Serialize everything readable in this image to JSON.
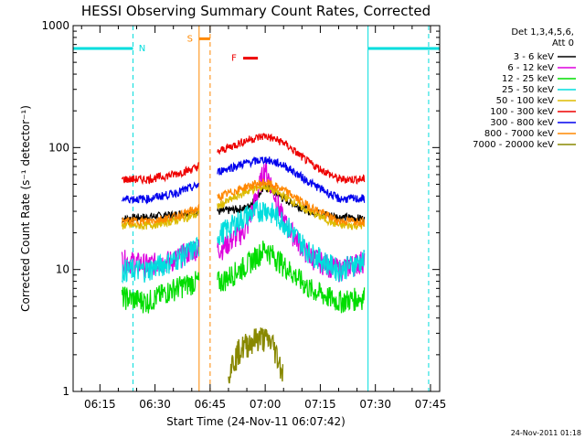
{
  "chart_data": {
    "type": "line",
    "title": "HESSI Observing Summary Count Rates, Corrected",
    "xlabel": "Start Time (24-Nov-11 06:07:42)",
    "ylabel": "Corrected Count Rate (s⁻¹ detector⁻¹)",
    "y_scale": "log",
    "ylim": [
      1,
      1000
    ],
    "xlim": [
      "06:07:42",
      "07:47:30"
    ],
    "x_tick_labels": [
      "06:15",
      "06:30",
      "06:45",
      "07:00",
      "07:15",
      "07:30",
      "07:45"
    ],
    "y_tick_labels": [
      "1",
      "10",
      "100",
      "1000"
    ],
    "legend_placement": "right",
    "legend_header": [
      "Det 1,3,4,5,6,",
      "Att 0"
    ],
    "data_gap": [
      "06:42",
      "06:47"
    ],
    "series": [
      {
        "name": "3 - 6 keV",
        "color": "#000000",
        "x": [
          "06:21",
          "06:28",
          "06:35",
          "06:41",
          "06:48",
          "06:55",
          "07:00",
          "07:05",
          "07:12",
          "07:20",
          "07:27"
        ],
        "y": [
          26,
          27,
          28,
          30,
          30,
          32,
          48,
          38,
          30,
          27,
          26
        ]
      },
      {
        "name": "6 - 12 keV",
        "color": "#dd00dd",
        "x": [
          "06:21",
          "06:28",
          "06:35",
          "06:41",
          "06:48",
          "06:55",
          "07:00",
          "07:05",
          "07:12",
          "07:20",
          "07:27"
        ],
        "y": [
          12,
          11,
          12,
          15,
          15,
          22,
          70,
          25,
          13,
          10,
          12
        ]
      },
      {
        "name": "12 - 25 keV",
        "color": "#00dd00",
        "x": [
          "06:21",
          "06:28",
          "06:35",
          "06:41",
          "06:48",
          "06:55",
          "07:00",
          "07:05",
          "07:12",
          "07:20",
          "07:27"
        ],
        "y": [
          6,
          5.5,
          7,
          8,
          8,
          11,
          15,
          11,
          7,
          5.5,
          6
        ]
      },
      {
        "name": "25 - 50 keV",
        "color": "#00dddd",
        "x": [
          "06:21",
          "06:28",
          "06:35",
          "06:41",
          "06:48",
          "06:55",
          "07:00",
          "07:05",
          "07:12",
          "07:20",
          "07:27"
        ],
        "y": [
          10,
          10,
          12,
          15,
          20,
          28,
          32,
          25,
          14,
          10,
          12
        ]
      },
      {
        "name": "50 - 100 keV",
        "color": "#ddbb00",
        "x": [
          "06:21",
          "06:28",
          "06:35",
          "06:41",
          "06:48",
          "06:55",
          "07:00",
          "07:05",
          "07:12",
          "07:20",
          "07:27"
        ],
        "y": [
          23,
          23,
          25,
          28,
          34,
          44,
          48,
          40,
          30,
          23,
          23
        ]
      },
      {
        "name": "100 - 300 keV",
        "color": "#ee0000",
        "x": [
          "06:21",
          "06:28",
          "06:35",
          "06:41",
          "06:48",
          "06:55",
          "07:00",
          "07:05",
          "07:12",
          "07:20",
          "07:27"
        ],
        "y": [
          55,
          55,
          60,
          68,
          95,
          115,
          125,
          110,
          75,
          55,
          55
        ]
      },
      {
        "name": "300 - 800 keV",
        "color": "#0000ee",
        "x": [
          "06:21",
          "06:28",
          "06:35",
          "06:41",
          "06:48",
          "06:55",
          "07:00",
          "07:05",
          "07:12",
          "07:20",
          "07:27"
        ],
        "y": [
          38,
          38,
          42,
          48,
          65,
          75,
          80,
          72,
          52,
          38,
          38
        ]
      },
      {
        "name": "800 - 7000 keV",
        "color": "#ff8800",
        "x": [
          "06:21",
          "06:28",
          "06:35",
          "06:41",
          "06:48",
          "06:55",
          "07:00",
          "07:05",
          "07:12",
          "07:20",
          "07:27"
        ],
        "y": [
          25,
          25,
          27,
          31,
          40,
          48,
          52,
          45,
          33,
          25,
          25
        ]
      },
      {
        "name": "7000 - 20000 keV",
        "color": "#888800",
        "x": [
          "06:50",
          "06:53",
          "06:56",
          "06:59",
          "07:02",
          "07:05"
        ],
        "y": [
          1.5,
          2.2,
          2.6,
          2.8,
          2.5,
          1.4
        ]
      }
    ],
    "flags": [
      {
        "label": "N",
        "color": "#00dddd",
        "segments": [
          [
            "06:07:42",
            "06:24"
          ],
          [
            "07:28",
            "07:47:30"
          ]
        ],
        "level": 650
      },
      {
        "label": "S",
        "color": "#ff8800",
        "segments": [
          [
            "06:42",
            "06:45"
          ]
        ],
        "level": 780
      },
      {
        "label": "F",
        "color": "#ee0000",
        "segments": [
          [
            "06:54",
            "06:58"
          ]
        ],
        "level": 540
      }
    ],
    "vertical_markers": [
      {
        "time": "06:07:42",
        "color": "#00dddd",
        "style": "solid"
      },
      {
        "time": "06:24",
        "color": "#00dddd",
        "style": "dashed"
      },
      {
        "time": "06:42",
        "color": "#ff8800",
        "style": "solid"
      },
      {
        "time": "06:45",
        "color": "#ff8800",
        "style": "dashed"
      },
      {
        "time": "07:28",
        "color": "#00dddd",
        "style": "solid"
      },
      {
        "time": "07:44:30",
        "color": "#00dddd",
        "style": "dashed"
      }
    ]
  },
  "footer": {
    "timestamp": "24-Nov-2011 01:18"
  }
}
